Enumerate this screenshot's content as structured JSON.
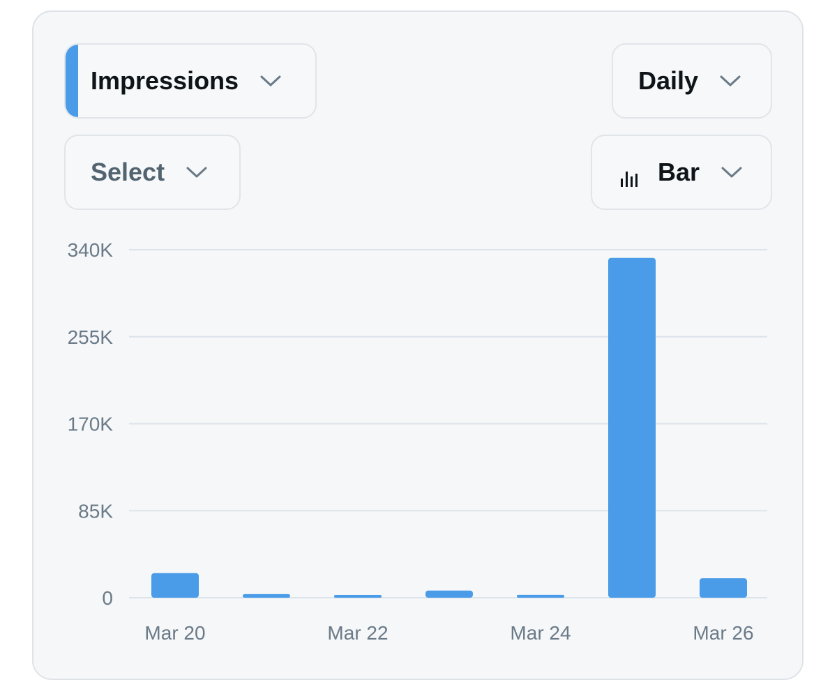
{
  "controls": {
    "metric_label": "Impressions",
    "period_label": "Daily",
    "select_label": "Select",
    "chart_type_label": "Bar",
    "accent_color": "#4a9be8"
  },
  "chart_data": {
    "type": "bar",
    "title": "",
    "xlabel": "",
    "ylabel": "",
    "categories": [
      "Mar 20",
      "Mar 21",
      "Mar 22",
      "Mar 23",
      "Mar 24",
      "Mar 25",
      "Mar 26"
    ],
    "x_tick_labels": [
      "Mar 20",
      "",
      "Mar 22",
      "",
      "Mar 24",
      "",
      "Mar 26"
    ],
    "values": [
      24000,
      3500,
      2500,
      7000,
      2800,
      332000,
      19000
    ],
    "yticks": [
      0,
      85000,
      170000,
      255000,
      340000
    ],
    "ytick_labels": [
      "0",
      "85K",
      "170K",
      "255K",
      "340K"
    ],
    "ylim": [
      0,
      340000
    ],
    "bar_color": "#4a9be8",
    "grid": true
  }
}
